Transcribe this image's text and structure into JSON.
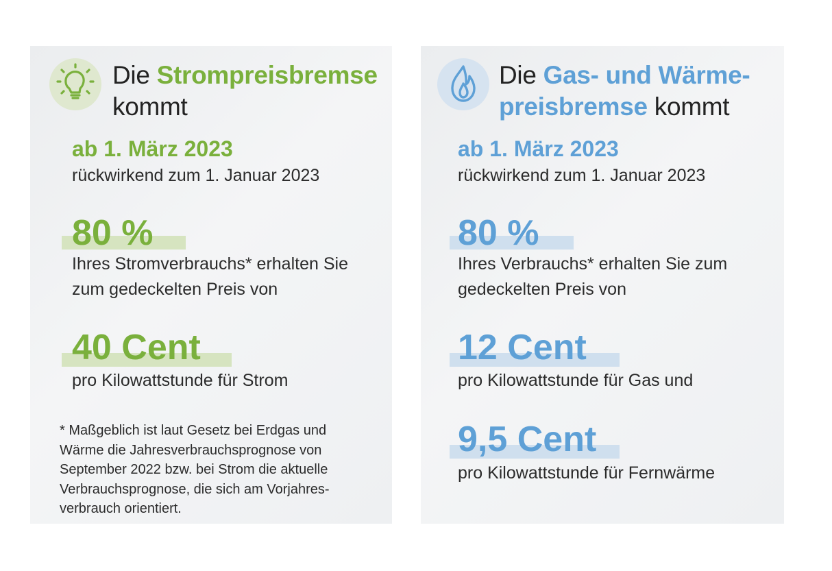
{
  "strom": {
    "title_pre": "Die ",
    "title_highlight": "Strompreisbremse",
    "title_post": "kommt",
    "date": "ab 1. März 2023",
    "retro": "rückwirkend zum 1. Januar 2023",
    "percent": "80 %",
    "percent_text_1": "Ihres Stromverbrauchs* erhalten Sie",
    "percent_text_2": "zum gedeckelten Preis von",
    "price": "40 Cent",
    "price_text": "pro Kilowattstunde für Strom",
    "footnote_1": "*  Maßgeblich ist laut Gesetz bei Erdgas und",
    "footnote_2": "Wärme die Jahresverbrauchsprognose von",
    "footnote_3": "September 2022 bzw. bei Strom die aktuelle",
    "footnote_4": "Verbrauchsprognose, die sich am Vorjahres-",
    "footnote_5": "verbrauch orientiert.",
    "icon": "lightbulb-icon",
    "accent_color": "#7ab03c"
  },
  "gas": {
    "title_pre": "Die ",
    "title_highlight_1": "Gas- und Wärme-",
    "title_highlight_2": "preisbremse",
    "title_post": " kommt",
    "date": "ab 1. März 2023",
    "retro": "rückwirkend zum 1. Januar 2023",
    "percent": "80 %",
    "percent_text_1": "Ihres Verbrauchs* erhalten Sie zum",
    "percent_text_2": "gedeckelten Preis von",
    "price_gas": "12 Cent",
    "price_gas_text": "pro Kilowattstunde für Gas und",
    "price_heat": "9,5 Cent",
    "price_heat_text": "pro Kilowattstunde für Fernwärme",
    "icon": "flame-icon",
    "accent_color": "#5ea0d6"
  }
}
